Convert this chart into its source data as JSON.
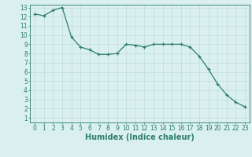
{
  "x": [
    0,
    1,
    2,
    3,
    4,
    5,
    6,
    7,
    8,
    9,
    10,
    11,
    12,
    13,
    14,
    15,
    16,
    17,
    18,
    19,
    20,
    21,
    22,
    23
  ],
  "y": [
    12.3,
    12.1,
    12.7,
    13.0,
    9.8,
    8.7,
    8.4,
    7.9,
    7.9,
    8.0,
    9.0,
    8.9,
    8.7,
    9.0,
    9.0,
    9.0,
    9.0,
    8.7,
    7.7,
    6.3,
    4.7,
    3.5,
    2.7,
    2.2
  ],
  "line_color": "#2e7d6e",
  "marker": "+",
  "marker_size": 3,
  "linewidth": 0.9,
  "xlabel": "Humidex (Indice chaleur)",
  "xlabel_fontsize": 7,
  "bg_color": "#d9f0ee",
  "grid_color": "#b8d8d4",
  "axis_color": "#2e7d6e",
  "xlim": [
    -0.5,
    23.5
  ],
  "ylim": [
    0.5,
    13.3
  ],
  "xticks": [
    0,
    1,
    2,
    3,
    4,
    5,
    6,
    7,
    8,
    9,
    10,
    11,
    12,
    13,
    14,
    15,
    16,
    17,
    18,
    19,
    20,
    21,
    22,
    23
  ],
  "yticks": [
    1,
    2,
    3,
    4,
    5,
    6,
    7,
    8,
    9,
    10,
    11,
    12,
    13
  ],
  "tick_fontsize": 5.5
}
